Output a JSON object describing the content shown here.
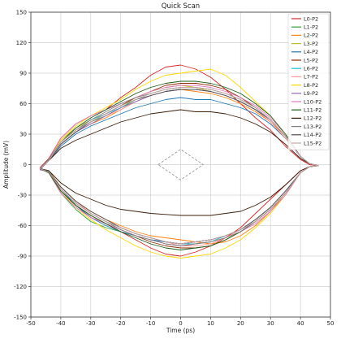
{
  "chart_data": {
    "type": "line",
    "title": "Quick Scan",
    "xlabel": "Time (ps)",
    "ylabel": "Amplitude (mV)",
    "xlim": [
      -50,
      50
    ],
    "ylim": [
      -150,
      150
    ],
    "x_ticks": [
      -50,
      -40,
      -30,
      -20,
      -10,
      0,
      10,
      20,
      30,
      40,
      50
    ],
    "y_ticks": [
      -150,
      -120,
      -90,
      -60,
      -30,
      0,
      30,
      60,
      90,
      120,
      150
    ],
    "grid": true,
    "legend_position": "top-right",
    "x": [
      -47,
      -44,
      -40,
      -35,
      -30,
      -25,
      -20,
      -15,
      -10,
      -5,
      0,
      5,
      10,
      15,
      20,
      25,
      30,
      35,
      40,
      43,
      46
    ],
    "series": [
      {
        "name": "L0-P2",
        "color": "#d62728",
        "upper": [
          -3,
          6,
          26,
          40,
          48,
          54,
          66,
          76,
          88,
          96,
          98,
          94,
          86,
          74,
          60,
          46,
          34,
          18,
          5,
          0,
          -1
        ],
        "lower": [
          -3,
          -8,
          -26,
          -40,
          -52,
          -58,
          -66,
          -74,
          -82,
          -88,
          -90,
          -86,
          -80,
          -72,
          -62,
          -48,
          -34,
          -20,
          -6,
          -2,
          -1
        ]
      },
      {
        "name": "L1-P2",
        "color": "#2ca02c",
        "upper": [
          -4,
          5,
          22,
          34,
          42,
          48,
          56,
          64,
          70,
          74,
          76,
          76,
          74,
          70,
          64,
          56,
          44,
          28,
          8,
          1,
          -1
        ],
        "lower": [
          -4,
          -8,
          -28,
          -44,
          -56,
          -62,
          -66,
          -70,
          -74,
          -76,
          -78,
          -76,
          -74,
          -70,
          -64,
          -56,
          -44,
          -28,
          -8,
          -2,
          -1
        ]
      },
      {
        "name": "L2-P2",
        "color": "#ff7f0e",
        "upper": [
          -5,
          4,
          20,
          32,
          40,
          46,
          54,
          62,
          68,
          72,
          74,
          72,
          70,
          66,
          60,
          52,
          42,
          28,
          8,
          1,
          -1
        ],
        "lower": [
          -5,
          -6,
          -22,
          -36,
          -46,
          -54,
          -60,
          -66,
          -70,
          -72,
          -74,
          -76,
          -78,
          -76,
          -70,
          -60,
          -46,
          -28,
          -8,
          -2,
          -1
        ]
      },
      {
        "name": "L3-P2",
        "color": "#bcbd22",
        "upper": [
          -4,
          5,
          24,
          36,
          44,
          50,
          58,
          66,
          72,
          76,
          78,
          76,
          72,
          68,
          62,
          54,
          44,
          28,
          8,
          1,
          -1
        ],
        "lower": [
          -4,
          -7,
          -24,
          -38,
          -48,
          -56,
          -62,
          -68,
          -72,
          -76,
          -78,
          -78,
          -76,
          -72,
          -66,
          -56,
          -44,
          -28,
          -8,
          -2,
          -1
        ]
      },
      {
        "name": "L4-P2",
        "color": "#1f77b4",
        "upper": [
          -4,
          4,
          18,
          30,
          38,
          44,
          50,
          56,
          60,
          64,
          66,
          64,
          64,
          60,
          56,
          50,
          40,
          26,
          8,
          1,
          -1
        ],
        "lower": [
          -4,
          -6,
          -24,
          -40,
          -52,
          -60,
          -66,
          -70,
          -74,
          -76,
          -78,
          -76,
          -74,
          -70,
          -64,
          -56,
          -44,
          -28,
          -8,
          -2,
          -1
        ]
      },
      {
        "name": "L5-P2",
        "color": "#8c2d04",
        "upper": [
          -4,
          5,
          22,
          34,
          42,
          50,
          58,
          66,
          72,
          78,
          80,
          80,
          78,
          74,
          66,
          56,
          44,
          28,
          8,
          1,
          -1
        ],
        "lower": [
          -4,
          -7,
          -26,
          -40,
          -50,
          -58,
          -64,
          -70,
          -76,
          -80,
          -82,
          -82,
          -80,
          -74,
          -66,
          -56,
          -44,
          -28,
          -8,
          -2,
          -1
        ]
      },
      {
        "name": "L6-P2",
        "color": "#17becf",
        "upper": [
          -4,
          5,
          22,
          34,
          44,
          50,
          56,
          62,
          68,
          72,
          74,
          74,
          72,
          68,
          62,
          54,
          44,
          28,
          8,
          1,
          -1
        ],
        "lower": [
          -4,
          -7,
          -24,
          -38,
          -48,
          -56,
          -62,
          -68,
          -72,
          -76,
          -78,
          -78,
          -76,
          -70,
          -64,
          -54,
          -42,
          -26,
          -8,
          -2,
          -1
        ]
      },
      {
        "name": "L7-P2",
        "color": "#ff9896",
        "upper": [
          -4,
          4,
          20,
          32,
          40,
          48,
          54,
          62,
          68,
          72,
          74,
          74,
          72,
          68,
          62,
          54,
          42,
          26,
          8,
          1,
          -1
        ],
        "lower": [
          -4,
          -7,
          -22,
          -36,
          -48,
          -56,
          -62,
          -68,
          -72,
          -76,
          -80,
          -80,
          -78,
          -72,
          -64,
          -54,
          -42,
          -26,
          -8,
          -2,
          -1
        ]
      },
      {
        "name": "L8-P2",
        "color": "#ffd700",
        "upper": [
          -4,
          5,
          24,
          38,
          48,
          56,
          64,
          74,
          82,
          88,
          90,
          92,
          94,
          88,
          76,
          62,
          48,
          30,
          8,
          1,
          -1
        ],
        "lower": [
          -4,
          -8,
          -26,
          -42,
          -54,
          -64,
          -72,
          -80,
          -86,
          -90,
          -92,
          -90,
          -88,
          -82,
          -74,
          -62,
          -48,
          -30,
          -8,
          -2,
          -1
        ]
      },
      {
        "name": "L9-P2",
        "color": "#9467bd",
        "upper": [
          -5,
          4,
          20,
          32,
          40,
          48,
          56,
          62,
          68,
          72,
          74,
          74,
          72,
          68,
          62,
          54,
          44,
          28,
          8,
          1,
          -1
        ],
        "lower": [
          -5,
          -7,
          -24,
          -38,
          -48,
          -56,
          -62,
          -68,
          -72,
          -76,
          -78,
          -76,
          -74,
          -70,
          -64,
          -56,
          -44,
          -28,
          -8,
          -2,
          -1
        ]
      },
      {
        "name": "L10-P2",
        "color": "#e377c2",
        "upper": [
          -4,
          5,
          26,
          40,
          48,
          54,
          60,
          66,
          72,
          76,
          78,
          78,
          76,
          72,
          66,
          58,
          46,
          30,
          8,
          1,
          -1
        ],
        "lower": [
          -4,
          -8,
          -28,
          -42,
          -52,
          -58,
          -64,
          -70,
          -74,
          -78,
          -80,
          -78,
          -76,
          -72,
          -66,
          -58,
          -46,
          -30,
          -8,
          -2,
          -1
        ]
      },
      {
        "name": "L11-P2",
        "color": "#1a5e1a",
        "upper": [
          -4,
          5,
          22,
          36,
          46,
          54,
          62,
          70,
          76,
          80,
          82,
          82,
          80,
          76,
          70,
          60,
          48,
          30,
          8,
          1,
          -1
        ],
        "lower": [
          -4,
          -8,
          -26,
          -40,
          -50,
          -58,
          -66,
          -72,
          -78,
          -82,
          -84,
          -82,
          -80,
          -74,
          -66,
          -56,
          -44,
          -28,
          -8,
          -2,
          -1
        ]
      },
      {
        "name": "L12-P2",
        "color": "#3b1e0a",
        "upper": [
          -4,
          4,
          16,
          24,
          30,
          36,
          42,
          46,
          50,
          52,
          54,
          52,
          52,
          50,
          46,
          40,
          32,
          20,
          6,
          1,
          -1
        ],
        "lower": [
          -4,
          -6,
          -18,
          -28,
          -34,
          -40,
          -44,
          -46,
          -48,
          -49,
          -50,
          -50,
          -50,
          -48,
          -46,
          -40,
          -32,
          -20,
          -6,
          -2,
          -1
        ]
      },
      {
        "name": "L13-P2",
        "color": "#7f7f7f",
        "upper": [
          -4,
          5,
          22,
          34,
          44,
          52,
          60,
          66,
          70,
          74,
          76,
          76,
          74,
          70,
          64,
          56,
          44,
          28,
          8,
          1,
          -1
        ],
        "lower": [
          -4,
          -7,
          -24,
          -38,
          -48,
          -56,
          -64,
          -70,
          -74,
          -78,
          -80,
          -78,
          -76,
          -72,
          -66,
          -56,
          -44,
          -28,
          -8,
          -2,
          -1
        ]
      },
      {
        "name": "L14-P2",
        "color": "#4d4d4d",
        "upper": [
          -4,
          4,
          20,
          32,
          42,
          50,
          58,
          64,
          68,
          72,
          74,
          74,
          72,
          68,
          62,
          54,
          44,
          28,
          8,
          1,
          -1
        ],
        "lower": [
          -4,
          -7,
          -22,
          -36,
          -46,
          -54,
          -62,
          -68,
          -72,
          -76,
          -78,
          -76,
          -74,
          -70,
          -64,
          -54,
          -42,
          -26,
          -8,
          -2,
          -1
        ]
      },
      {
        "name": "L15-P2",
        "color": "#c7a6a6",
        "upper": [
          -4,
          4,
          22,
          34,
          42,
          50,
          58,
          64,
          70,
          74,
          76,
          76,
          74,
          70,
          64,
          56,
          44,
          28,
          8,
          1,
          -1
        ],
        "lower": [
          -4,
          -7,
          -24,
          -38,
          -48,
          -56,
          -62,
          -68,
          -72,
          -76,
          -78,
          -76,
          -74,
          -70,
          -64,
          -56,
          -44,
          -28,
          -8,
          -2,
          -1
        ]
      }
    ],
    "mask": {
      "points": [
        [
          -7.5,
          0
        ],
        [
          0,
          15
        ],
        [
          7.5,
          0
        ],
        [
          0,
          -15
        ]
      ],
      "color": "#999999",
      "style": "dashed"
    }
  }
}
